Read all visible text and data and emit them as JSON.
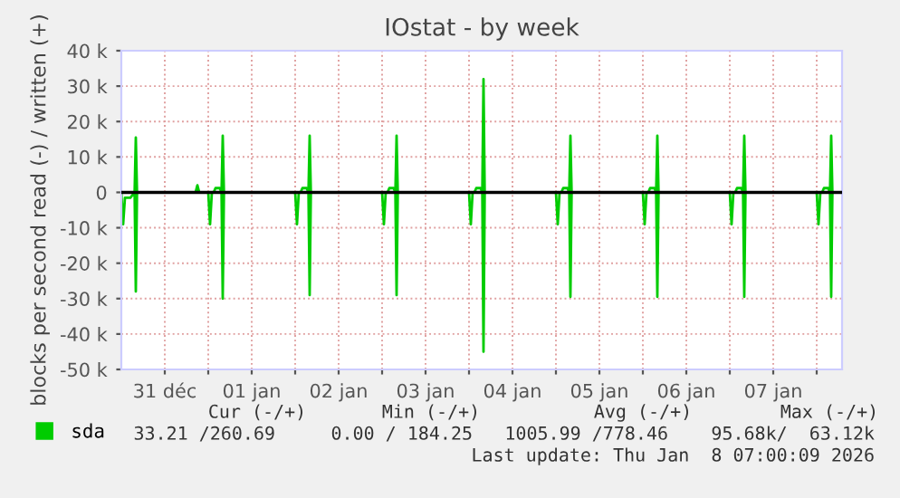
{
  "chart_data": {
    "type": "line",
    "title": "IOstat - by week",
    "ylabel": "blocks per second read (-) / written (+)",
    "xlim": [
      "2025-12-31T00:00",
      "2026-01-08T07:00"
    ],
    "xticks": [
      {
        "value": "2025-12-31T12:00",
        "label": "31 déc"
      },
      {
        "value": "2026-01-01T00:00",
        "label": null
      },
      {
        "value": "2026-01-01T12:00",
        "label": "01 jan"
      },
      {
        "value": "2026-01-02T00:00",
        "label": null
      },
      {
        "value": "2026-01-02T12:00",
        "label": "02 jan"
      },
      {
        "value": "2026-01-03T00:00",
        "label": null
      },
      {
        "value": "2026-01-03T12:00",
        "label": "03 jan"
      },
      {
        "value": "2026-01-04T00:00",
        "label": null
      },
      {
        "value": "2026-01-04T12:00",
        "label": "04 jan"
      },
      {
        "value": "2026-01-05T00:00",
        "label": null
      },
      {
        "value": "2026-01-05T12:00",
        "label": "05 jan"
      },
      {
        "value": "2026-01-06T00:00",
        "label": null
      },
      {
        "value": "2026-01-06T12:00",
        "label": "06 jan"
      },
      {
        "value": "2026-01-07T00:00",
        "label": null
      },
      {
        "value": "2026-01-07T12:00",
        "label": "07 jan"
      },
      {
        "value": "2026-01-08T00:00",
        "label": null
      }
    ],
    "ylim": [
      -50000,
      40000
    ],
    "yticks": [
      {
        "value": -50000,
        "label": "-50 k"
      },
      {
        "value": -40000,
        "label": "-40 k"
      },
      {
        "value": -30000,
        "label": "-30 k"
      },
      {
        "value": -20000,
        "label": "-20 k"
      },
      {
        "value": -10000,
        "label": "-10 k"
      },
      0,
      {
        "value": 10000,
        "label": "10 k"
      },
      {
        "value": 20000,
        "label": "20 k"
      },
      {
        "value": 30000,
        "label": "30 k"
      },
      {
        "value": 40000,
        "label": "40 k"
      }
    ],
    "grid": true,
    "legend": "bottom",
    "line_style": "solid",
    "marker": "none",
    "ref_lines": [
      {
        "axis": "y",
        "value": 0,
        "color": "#000000"
      }
    ],
    "series": [
      {
        "name": "sda",
        "color": "#00cc00",
        "x": [
          "2025-12-31T00:00",
          "2025-12-31T03:40",
          "2025-12-31T04:00",
          "2025-12-31T04:20",
          "2025-12-31T20:30",
          "2025-12-31T21:00",
          "2025-12-31T21:30",
          "2026-01-01T01:30",
          "2026-01-01T02:00",
          "2026-01-01T03:10",
          "2026-01-01T03:40",
          "2026-01-01T04:00",
          "2026-01-01T04:20",
          "2026-01-02T01:30",
          "2026-01-02T02:00",
          "2026-01-02T03:10",
          "2026-01-02T03:40",
          "2026-01-02T04:00",
          "2026-01-02T04:20",
          "2026-01-03T01:30",
          "2026-01-03T02:00",
          "2026-01-03T03:10",
          "2026-01-03T03:40",
          "2026-01-03T04:00",
          "2026-01-03T04:20",
          "2026-01-04T01:30",
          "2026-01-04T02:00",
          "2026-01-04T03:10",
          "2026-01-04T03:40",
          "2026-01-04T04:00",
          "2026-01-04T04:20",
          "2026-01-05T01:30",
          "2026-01-05T02:00",
          "2026-01-05T03:10",
          "2026-01-05T03:40",
          "2026-01-05T04:00",
          "2026-01-05T04:20",
          "2026-01-06T01:30",
          "2026-01-06T02:00",
          "2026-01-06T03:10",
          "2026-01-06T03:40",
          "2026-01-06T04:00",
          "2026-01-06T04:20",
          "2026-01-07T01:30",
          "2026-01-07T02:00",
          "2026-01-07T03:10",
          "2026-01-07T03:40",
          "2026-01-07T04:00",
          "2026-01-07T04:20",
          "2026-01-08T01:30",
          "2026-01-08T02:00",
          "2026-01-08T03:10",
          "2026-01-08T03:40",
          "2026-01-08T04:00",
          "2026-01-08T04:20",
          "2026-01-08T07:00"
        ],
        "values": [
          0,
          0,
          15500,
          0,
          0,
          2000,
          0,
          0,
          1200,
          1200,
          0,
          16000,
          0,
          0,
          1200,
          1200,
          0,
          16000,
          0,
          0,
          1200,
          1200,
          0,
          16000,
          0,
          0,
          1200,
          1200,
          0,
          32000,
          0,
          0,
          1200,
          1200,
          0,
          16000,
          0,
          0,
          1200,
          1200,
          0,
          16000,
          0,
          0,
          1200,
          1200,
          0,
          16000,
          0,
          0,
          1200,
          1200,
          0,
          16000,
          0,
          0
        ]
      },
      {
        "color": "#00cc00",
        "x": [
          "2025-12-31T00:00",
          "2025-12-31T00:30",
          "2025-12-31T01:00",
          "2025-12-31T02:30",
          "2025-12-31T03:40",
          "2025-12-31T04:00",
          "2025-12-31T04:20",
          "2026-01-01T00:00",
          "2026-01-01T00:30",
          "2026-01-01T01:00",
          "2026-01-01T03:40",
          "2026-01-01T04:00",
          "2026-01-01T04:20",
          "2026-01-02T00:00",
          "2026-01-02T00:30",
          "2026-01-02T01:00",
          "2026-01-02T03:40",
          "2026-01-02T04:00",
          "2026-01-02T04:20",
          "2026-01-03T00:00",
          "2026-01-03T00:30",
          "2026-01-03T01:00",
          "2026-01-03T03:40",
          "2026-01-03T04:00",
          "2026-01-03T04:20",
          "2026-01-04T00:00",
          "2026-01-04T00:30",
          "2026-01-04T01:00",
          "2026-01-04T03:40",
          "2026-01-04T04:00",
          "2026-01-04T04:20",
          "2026-01-05T00:00",
          "2026-01-05T00:30",
          "2026-01-05T01:00",
          "2026-01-05T03:40",
          "2026-01-05T04:00",
          "2026-01-05T04:20",
          "2026-01-06T00:00",
          "2026-01-06T00:30",
          "2026-01-06T01:00",
          "2026-01-06T03:40",
          "2026-01-06T04:00",
          "2026-01-06T04:20",
          "2026-01-07T00:00",
          "2026-01-07T00:30",
          "2026-01-07T01:00",
          "2026-01-07T03:40",
          "2026-01-07T04:00",
          "2026-01-07T04:20",
          "2026-01-08T00:00",
          "2026-01-08T00:30",
          "2026-01-08T01:00",
          "2026-01-08T03:40",
          "2026-01-08T04:00",
          "2026-01-08T04:20",
          "2026-01-08T07:00"
        ],
        "values": [
          0,
          -9000,
          -1500,
          -1500,
          0,
          -28000,
          0,
          0,
          -9000,
          0,
          0,
          -30000,
          0,
          0,
          -9000,
          0,
          0,
          -29000,
          0,
          0,
          -9000,
          0,
          0,
          -29000,
          0,
          0,
          -9000,
          0,
          0,
          -45000,
          0,
          0,
          -9000,
          0,
          0,
          -29500,
          0,
          0,
          -9000,
          0,
          0,
          -29500,
          0,
          0,
          -9000,
          0,
          0,
          -29500,
          0,
          0,
          -9000,
          0,
          0,
          -29500,
          0,
          0
        ]
      }
    ],
    "annotations": [
      "Cur (-/+)",
      "Min (-/+)",
      "Avg (-/+)",
      "Max (-/+)",
      "33.21 /260.69",
      "0.00 / 184.25",
      "1005.99 /778.46",
      "95.68k/  63.12k",
      "Last update: Thu Jan  8 07:00:09 2026"
    ]
  }
}
